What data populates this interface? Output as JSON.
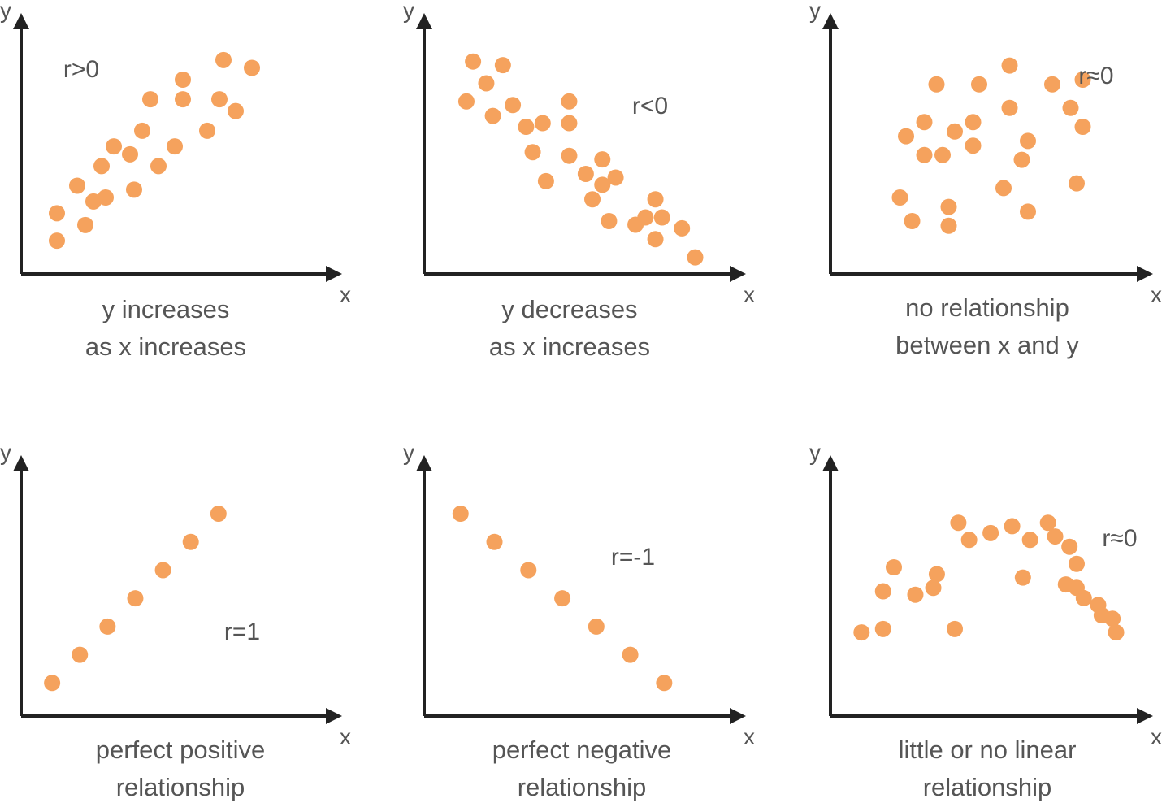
{
  "colors": {
    "point": "#f5a25d",
    "axis": "#222222",
    "text": "#555555"
  },
  "chart_data": [
    {
      "type": "scatter",
      "annotation": "r>0",
      "caption": [
        "y increases",
        "as x increases"
      ],
      "xlabel": "x",
      "ylabel": "y",
      "points": [
        [
          0.8,
          0.7
        ],
        [
          0.8,
          1.4
        ],
        [
          1.3,
          2.1
        ],
        [
          1.5,
          1.1
        ],
        [
          1.7,
          1.7
        ],
        [
          1.9,
          2.6
        ],
        [
          2.0,
          1.8
        ],
        [
          2.2,
          3.1
        ],
        [
          2.6,
          2.9
        ],
        [
          2.7,
          2.0
        ],
        [
          2.9,
          3.5
        ],
        [
          3.1,
          4.3
        ],
        [
          3.3,
          2.6
        ],
        [
          3.7,
          3.1
        ],
        [
          3.9,
          4.3
        ],
        [
          3.9,
          4.8
        ],
        [
          4.5,
          3.5
        ],
        [
          4.8,
          4.3
        ],
        [
          4.9,
          5.3
        ],
        [
          5.2,
          4.0
        ],
        [
          5.6,
          5.1
        ]
      ]
    },
    {
      "type": "scatter",
      "annotation": "r<0",
      "caption": [
        "y decreases",
        "as x increases"
      ],
      "xlabel": "x",
      "ylabel": "y",
      "points": [
        [
          1.2,
          4.6
        ],
        [
          1.4,
          5.7
        ],
        [
          1.8,
          5.1
        ],
        [
          2.0,
          4.2
        ],
        [
          2.3,
          5.6
        ],
        [
          2.6,
          4.5
        ],
        [
          3.0,
          3.9
        ],
        [
          3.2,
          3.2
        ],
        [
          3.5,
          4.0
        ],
        [
          3.6,
          2.4
        ],
        [
          4.3,
          4.6
        ],
        [
          4.3,
          4.0
        ],
        [
          4.3,
          3.1
        ],
        [
          4.8,
          2.6
        ],
        [
          5.0,
          1.9
        ],
        [
          5.3,
          3.0
        ],
        [
          5.3,
          2.3
        ],
        [
          5.5,
          1.3
        ],
        [
          5.7,
          2.5
        ],
        [
          6.3,
          1.2
        ],
        [
          6.6,
          1.4
        ],
        [
          6.9,
          1.9
        ],
        [
          6.9,
          0.8
        ],
        [
          7.1,
          1.4
        ],
        [
          7.7,
          1.1
        ],
        [
          8.1,
          0.3
        ]
      ]
    },
    {
      "type": "scatter",
      "annotation": "r≈0",
      "caption": [
        "no relationship",
        "between x and y"
      ],
      "xlabel": "x",
      "ylabel": "y",
      "points": [
        [
          1.1,
          1.5
        ],
        [
          1.2,
          2.8
        ],
        [
          1.3,
          1.0
        ],
        [
          1.5,
          2.4
        ],
        [
          1.5,
          3.1
        ],
        [
          1.7,
          3.9
        ],
        [
          1.8,
          2.4
        ],
        [
          1.9,
          1.3
        ],
        [
          1.9,
          0.9
        ],
        [
          2.0,
          2.9
        ],
        [
          2.3,
          3.1
        ],
        [
          2.3,
          2.6
        ],
        [
          2.4,
          3.9
        ],
        [
          2.8,
          1.7
        ],
        [
          2.9,
          3.4
        ],
        [
          2.9,
          4.3
        ],
        [
          3.1,
          2.3
        ],
        [
          3.2,
          2.7
        ],
        [
          3.2,
          1.2
        ],
        [
          3.6,
          3.9
        ],
        [
          3.9,
          3.4
        ],
        [
          4.0,
          1.8
        ],
        [
          4.1,
          3.0
        ],
        [
          4.1,
          4.0
        ]
      ]
    },
    {
      "type": "scatter",
      "annotation": "r=1",
      "caption": [
        "perfect positive",
        "relationship"
      ],
      "xlabel": "x",
      "ylabel": "y",
      "points": [
        [
          1,
          1
        ],
        [
          2,
          2
        ],
        [
          3,
          3
        ],
        [
          4,
          4
        ],
        [
          5,
          5
        ],
        [
          6,
          6
        ],
        [
          7,
          7
        ]
      ]
    },
    {
      "type": "scatter",
      "annotation": "r=-1",
      "caption": [
        "perfect negative",
        "relationship"
      ],
      "xlabel": "x",
      "ylabel": "y",
      "points": [
        [
          1,
          7
        ],
        [
          2,
          6
        ],
        [
          3,
          5
        ],
        [
          4,
          4
        ],
        [
          5,
          3
        ],
        [
          6,
          2
        ],
        [
          7,
          1
        ]
      ]
    },
    {
      "type": "scatter",
      "annotation": "r≈0",
      "caption": [
        "little or no linear",
        "relationship"
      ],
      "xlabel": "x",
      "ylabel": "y",
      "points": [
        [
          0.8,
          2.3
        ],
        [
          1.4,
          2.4
        ],
        [
          1.4,
          3.5
        ],
        [
          1.7,
          4.2
        ],
        [
          2.3,
          3.4
        ],
        [
          2.8,
          3.6
        ],
        [
          2.9,
          4.0
        ],
        [
          3.4,
          2.4
        ],
        [
          3.5,
          5.5
        ],
        [
          3.8,
          5.0
        ],
        [
          4.4,
          5.2
        ],
        [
          5.0,
          5.4
        ],
        [
          5.3,
          3.9
        ],
        [
          5.5,
          5.0
        ],
        [
          6.0,
          5.5
        ],
        [
          6.2,
          5.1
        ],
        [
          6.5,
          3.7
        ],
        [
          6.6,
          4.8
        ],
        [
          6.8,
          3.6
        ],
        [
          6.8,
          4.3
        ],
        [
          7.0,
          3.3
        ],
        [
          7.4,
          3.1
        ],
        [
          7.5,
          2.8
        ],
        [
          7.8,
          2.7
        ],
        [
          7.9,
          2.3
        ]
      ]
    }
  ]
}
